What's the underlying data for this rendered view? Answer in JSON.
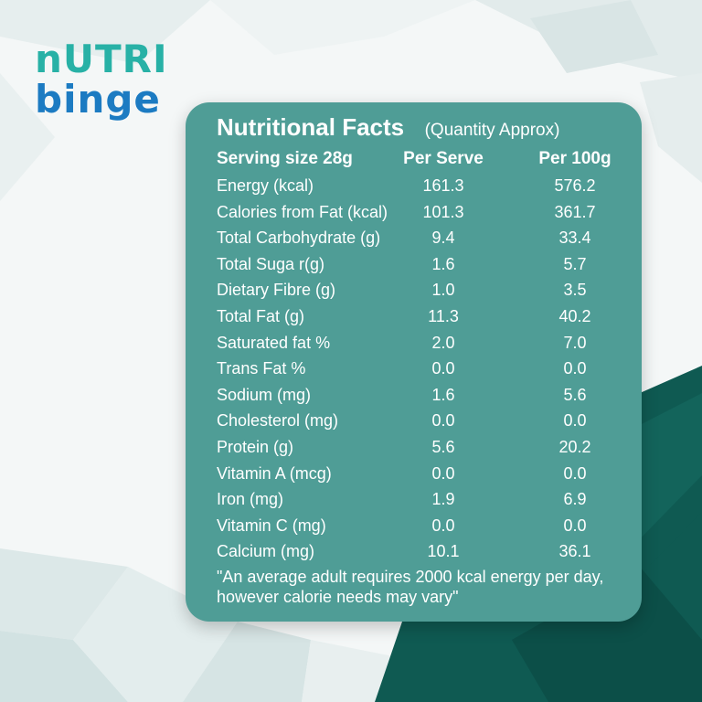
{
  "brand": {
    "line1": "nUTRI",
    "line2": "binge"
  },
  "panel": {
    "title": "Nutritional Facts",
    "subtitle": "(Quantity Approx)",
    "headers": {
      "item": "Serving size 28g",
      "per_serve": "Per Serve",
      "per_100g": "Per 100g"
    },
    "rows": [
      {
        "name": "Energy (kcal)",
        "per_serve": "161.3",
        "per_100g": "576.2"
      },
      {
        "name": "Calories from Fat (kcal)",
        "per_serve": "101.3",
        "per_100g": "361.7"
      },
      {
        "name": "Total Carbohydrate (g)",
        "per_serve": "9.4",
        "per_100g": "33.4"
      },
      {
        "name": "Total Suga r(g)",
        "per_serve": "1.6",
        "per_100g": "5.7"
      },
      {
        "name": "Dietary Fibre (g)",
        "per_serve": "1.0",
        "per_100g": "3.5"
      },
      {
        "name": "Total Fat (g)",
        "per_serve": "11.3",
        "per_100g": "40.2"
      },
      {
        "name": "Saturated fat %",
        "per_serve": "2.0",
        "per_100g": "7.0"
      },
      {
        "name": "Trans Fat %",
        "per_serve": "0.0",
        "per_100g": "0.0"
      },
      {
        "name": "Sodium (mg)",
        "per_serve": "1.6",
        "per_100g": "5.6"
      },
      {
        "name": "Cholesterol (mg)",
        "per_serve": "0.0",
        "per_100g": "0.0"
      },
      {
        "name": "Protein (g)",
        "per_serve": "5.6",
        "per_100g": "20.2"
      },
      {
        "name": "Vitamin A (mcg)",
        "per_serve": "0.0",
        "per_100g": "0.0"
      },
      {
        "name": "Iron (mg)",
        "per_serve": "1.9",
        "per_100g": "6.9"
      },
      {
        "name": "Vitamin C (mg)",
        "per_serve": "0.0",
        "per_100g": "0.0"
      },
      {
        "name": "Calcium (mg)",
        "per_serve": "10.1",
        "per_100g": "36.1"
      }
    ],
    "note": "\"An average adult requires 2000 kcal energy per day, however calorie needs may vary\""
  },
  "colors": {
    "panel": "#4f9d96",
    "dark_teal": "#0f5a52",
    "logo_teal": "#28b1a6",
    "logo_blue": "#1c7bc2",
    "text": "#ffffff"
  }
}
